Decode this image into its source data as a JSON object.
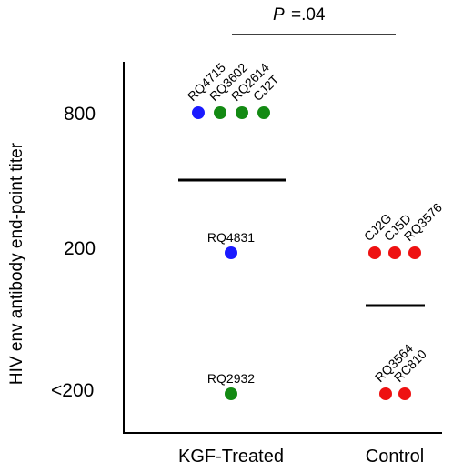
{
  "chart_data": {
    "type": "scatter",
    "title": "",
    "ylabel": "HIV env antibody end-point titer",
    "xlabel": "",
    "categories": [
      "KGF-Treated",
      "Control"
    ],
    "y_ticks": [
      "800",
      "200",
      "<200"
    ],
    "significance": {
      "label": "P",
      "value": "=.04"
    },
    "points": [
      {
        "label": "RQ4715",
        "group": "KGF-Treated",
        "titer": "800",
        "color": "#1a1aff"
      },
      {
        "label": "RQ3602",
        "group": "KGF-Treated",
        "titer": "800",
        "color": "#138a13"
      },
      {
        "label": "RQ2614",
        "group": "KGF-Treated",
        "titer": "800",
        "color": "#138a13"
      },
      {
        "label": "CJ2T",
        "group": "KGF-Treated",
        "titer": "800",
        "color": "#138a13"
      },
      {
        "label": "RQ4831",
        "group": "KGF-Treated",
        "titer": "200",
        "color": "#1a1aff"
      },
      {
        "label": "RQ2932",
        "group": "KGF-Treated",
        "titer": "<200",
        "color": "#138a13"
      },
      {
        "label": "CJ2G",
        "group": "Control",
        "titer": "200",
        "color": "#ee1111"
      },
      {
        "label": "CJ5D",
        "group": "Control",
        "titer": "200",
        "color": "#ee1111"
      },
      {
        "label": "RQ3576",
        "group": "Control",
        "titer": "200",
        "color": "#ee1111"
      },
      {
        "label": "RQ3564",
        "group": "Control",
        "titer": "<200",
        "color": "#ee1111"
      },
      {
        "label": "RC810",
        "group": "Control",
        "titer": "<200",
        "color": "#ee1111"
      }
    ]
  }
}
